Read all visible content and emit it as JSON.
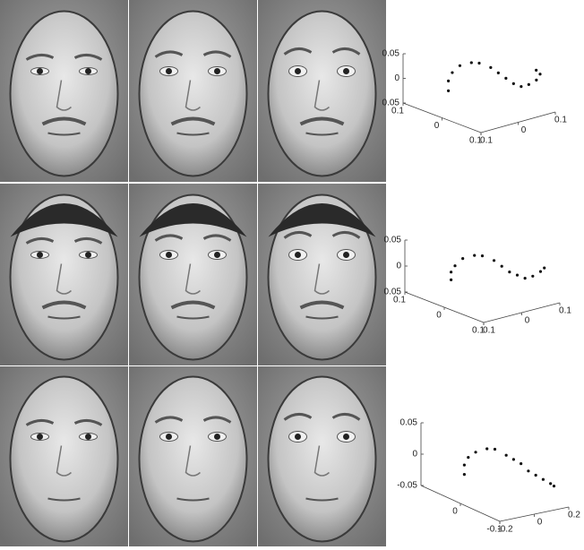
{
  "chart_data": [
    {
      "type": "scatter3d",
      "xlim": [
        -0.1,
        0.1
      ],
      "ylim": [
        -0.1,
        0.1
      ],
      "zlim": [
        -0.05,
        0.05
      ],
      "xticks": [
        {
          "value": -0.1,
          "label": "0.1"
        },
        0,
        0.1
      ],
      "yticks": [
        {
          "value": -0.1,
          "label": "0.1"
        },
        0,
        0.1
      ],
      "zticks": [
        {
          "value": -0.05,
          "label": "0.05"
        },
        0,
        0.05
      ],
      "color": "#111111",
      "x": [
        -0.06,
        -0.06,
        -0.05,
        -0.04,
        -0.02,
        0.0,
        0.02,
        0.03,
        0.04,
        0.05,
        0.06,
        0.07,
        0.08,
        0.08,
        0.07
      ],
      "y": [
        -0.02,
        -0.02,
        -0.02,
        -0.01,
        0.0,
        0.0,
        0.01,
        0.02,
        0.03,
        0.04,
        0.05,
        0.06,
        0.07,
        0.08,
        0.08
      ],
      "z": [
        -0.03,
        -0.01,
        0.01,
        0.025,
        0.035,
        0.04,
        0.035,
        0.025,
        0.015,
        0.005,
        0.0,
        0.005,
        0.015,
        0.025,
        0.03
      ]
    },
    {
      "type": "scatter3d",
      "xlim": [
        -0.1,
        0.1
      ],
      "ylim": [
        -0.1,
        0.1
      ],
      "zlim": [
        -0.05,
        0.05
      ],
      "xticks": [
        {
          "value": -0.1,
          "label": "0.1"
        },
        0,
        0.1
      ],
      "yticks": [
        {
          "value": -0.1,
          "label": "0.1"
        },
        0,
        0.1
      ],
      "zticks": [
        {
          "value": -0.05,
          "label": "0.05"
        },
        0,
        0.05
      ],
      "color": "#111111",
      "x": [
        -0.06,
        -0.06,
        -0.05,
        -0.04,
        -0.02,
        0.0,
        0.02,
        0.03,
        0.04,
        0.05,
        0.06,
        0.07,
        0.08,
        0.08
      ],
      "y": [
        -0.02,
        -0.02,
        -0.02,
        -0.01,
        0.0,
        0.0,
        0.01,
        0.02,
        0.03,
        0.04,
        0.05,
        0.06,
        0.07,
        0.08
      ],
      "z": [
        -0.03,
        -0.015,
        0.0,
        0.015,
        0.025,
        0.03,
        0.025,
        0.015,
        0.005,
        0.0,
        -0.005,
        0.0,
        0.01,
        0.015
      ]
    },
    {
      "type": "scatter3d",
      "xlim": [
        0.1,
        -0.1
      ],
      "ylim": [
        -0.2,
        0.2
      ],
      "zlim": [
        -0.05,
        0.05
      ],
      "xticks": [
        0,
        -0.1
      ],
      "yticks": [
        -0.2,
        0,
        0.2
      ],
      "zticks": [
        -0.05,
        0,
        0.05
      ],
      "color": "#111111",
      "x": [
        0.06,
        0.06,
        0.05,
        0.04,
        0.02,
        0.0,
        -0.02,
        -0.03,
        -0.04,
        -0.05,
        -0.06,
        -0.07,
        -0.08,
        -0.08
      ],
      "y": [
        -0.04,
        -0.04,
        -0.04,
        -0.02,
        0.0,
        0.0,
        0.02,
        0.04,
        0.06,
        0.08,
        0.1,
        0.12,
        0.14,
        0.16
      ],
      "z": [
        -0.03,
        -0.015,
        0.0,
        0.01,
        0.02,
        0.025,
        0.02,
        0.015,
        0.01,
        0.0,
        -0.005,
        -0.01,
        -0.015,
        -0.02
      ]
    }
  ]
}
